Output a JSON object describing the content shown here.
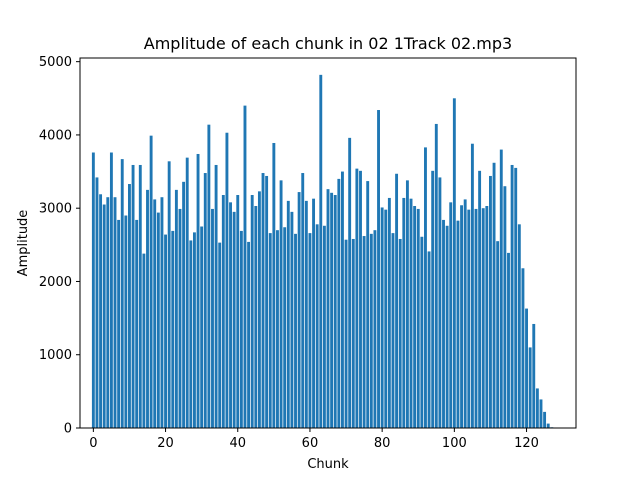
{
  "chart_data": {
    "type": "bar",
    "title": "Amplitude of each chunk in 02 1Track 02.mp3",
    "xlabel": "Chunk",
    "ylabel": "Amplitude",
    "xlim": [
      -3.7,
      133.7
    ],
    "ylim": [
      0,
      5050
    ],
    "xticks": [
      0,
      20,
      40,
      60,
      80,
      100,
      120
    ],
    "yticks": [
      0,
      1000,
      2000,
      3000,
      4000,
      5000
    ],
    "grid": false,
    "color": "#1f77b4",
    "x": [
      0,
      1,
      2,
      3,
      4,
      5,
      6,
      7,
      8,
      9,
      10,
      11,
      12,
      13,
      14,
      15,
      16,
      17,
      18,
      19,
      20,
      21,
      22,
      23,
      24,
      25,
      26,
      27,
      28,
      29,
      30,
      31,
      32,
      33,
      34,
      35,
      36,
      37,
      38,
      39,
      40,
      41,
      42,
      43,
      44,
      45,
      46,
      47,
      48,
      49,
      50,
      51,
      52,
      53,
      54,
      55,
      56,
      57,
      58,
      59,
      60,
      61,
      62,
      63,
      64,
      65,
      66,
      67,
      68,
      69,
      70,
      71,
      72,
      73,
      74,
      75,
      76,
      77,
      78,
      79,
      80,
      81,
      82,
      83,
      84,
      85,
      86,
      87,
      88,
      89,
      90,
      91,
      92,
      93,
      94,
      95,
      96,
      97,
      98,
      99,
      100,
      101,
      102,
      103,
      104,
      105,
      106,
      107,
      108,
      109,
      110,
      111,
      112,
      113,
      114,
      115,
      116,
      117,
      118,
      119,
      120,
      121,
      122,
      123,
      124,
      125,
      126,
      127
    ],
    "values": [
      3760,
      3420,
      3190,
      3050,
      3150,
      3760,
      3150,
      2840,
      3670,
      2900,
      3330,
      3590,
      2840,
      3590,
      2380,
      3250,
      3990,
      3120,
      2940,
      3150,
      2640,
      3640,
      2690,
      3250,
      2990,
      3360,
      3690,
      2560,
      2670,
      3740,
      2750,
      3480,
      4140,
      2990,
      3590,
      2530,
      3180,
      4030,
      3080,
      2950,
      3180,
      2690,
      4400,
      2540,
      3180,
      3030,
      3230,
      3480,
      3440,
      2660,
      3890,
      2700,
      3380,
      2740,
      3100,
      2950,
      2650,
      3220,
      3480,
      3100,
      2660,
      3130,
      2780,
      4820,
      2760,
      3260,
      3210,
      3180,
      3400,
      3500,
      2570,
      3960,
      2580,
      3540,
      3510,
      2620,
      3370,
      2650,
      2700,
      4340,
      3010,
      2980,
      3140,
      2660,
      3470,
      2580,
      3140,
      3380,
      3130,
      3030,
      2990,
      2610,
      3830,
      2410,
      3510,
      4150,
      3420,
      2840,
      2760,
      3080,
      4500,
      2830,
      3040,
      3120,
      2980,
      3880,
      2990,
      3510,
      3000,
      3030,
      3440,
      3620,
      2550,
      3800,
      3300,
      2390,
      3590,
      3550,
      2780,
      2180,
      1630,
      1100,
      1420,
      540,
      390,
      220,
      60,
      10
    ]
  }
}
